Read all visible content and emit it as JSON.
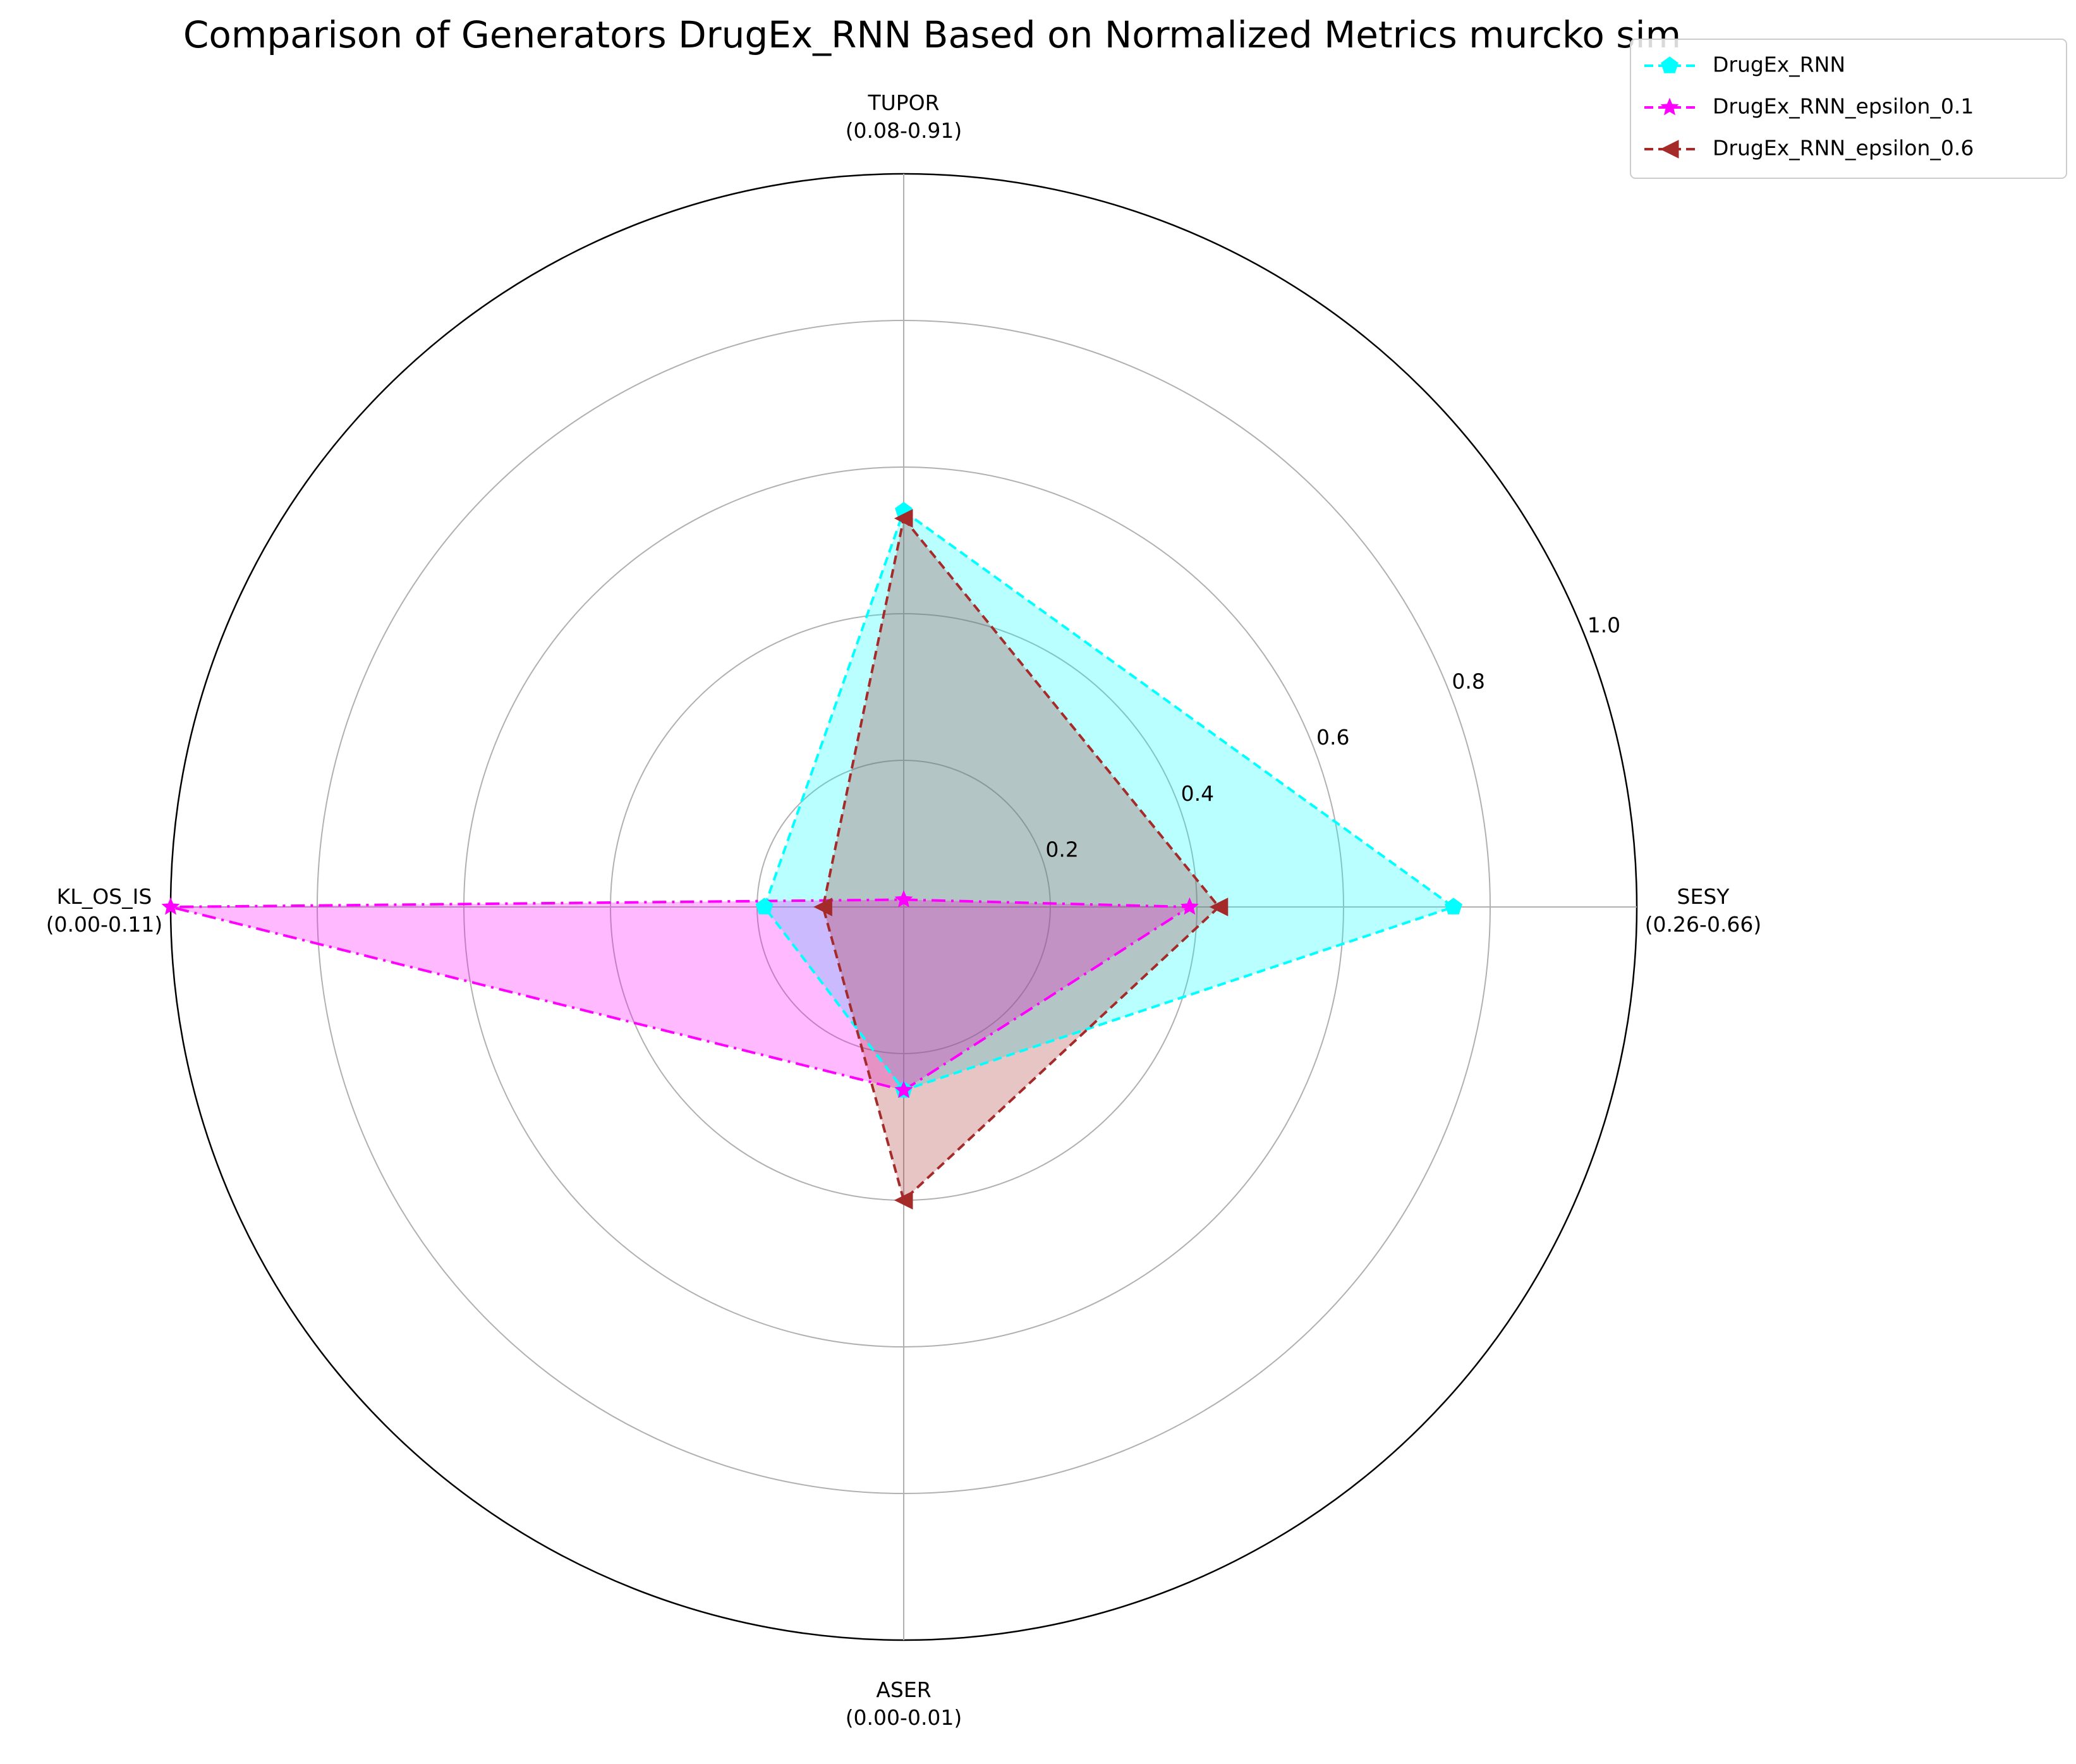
{
  "chart_data": {
    "type": "radar",
    "title": "Comparison of Generators DrugEx_RNN Based on Normalized Metrics murcko sim",
    "axes": [
      {
        "name": "TUPOR",
        "range": "(0.08-0.91)"
      },
      {
        "name": "SESY",
        "range": "(0.26-0.66)"
      },
      {
        "name": "ASER",
        "range": "(0.00-0.01)"
      },
      {
        "name": "KL_OS_IS",
        "range": "(0.00-0.11)"
      }
    ],
    "rlim": [
      0,
      1.0
    ],
    "rticks": [
      "0.2",
      "0.4",
      "0.6",
      "0.8",
      "1.0"
    ],
    "grid": true,
    "legend_position": "top-right",
    "series": [
      {
        "name": "DrugEx_RNN",
        "values": [
          0.54,
          0.75,
          0.25,
          0.19
        ],
        "color": "#00ffff",
        "marker": "pentagon",
        "linestyle": "dashed"
      },
      {
        "name": "DrugEx_RNN_epsilon_0.1",
        "values": [
          0.01,
          0.39,
          0.25,
          1.0
        ],
        "color": "#ff00ff",
        "marker": "star",
        "linestyle": "dashdot"
      },
      {
        "name": "DrugEx_RNN_epsilon_0.6",
        "values": [
          0.53,
          0.43,
          0.4,
          0.11
        ],
        "color": "#a52a2a",
        "marker": "triangle-left",
        "linestyle": "dashed"
      }
    ]
  }
}
